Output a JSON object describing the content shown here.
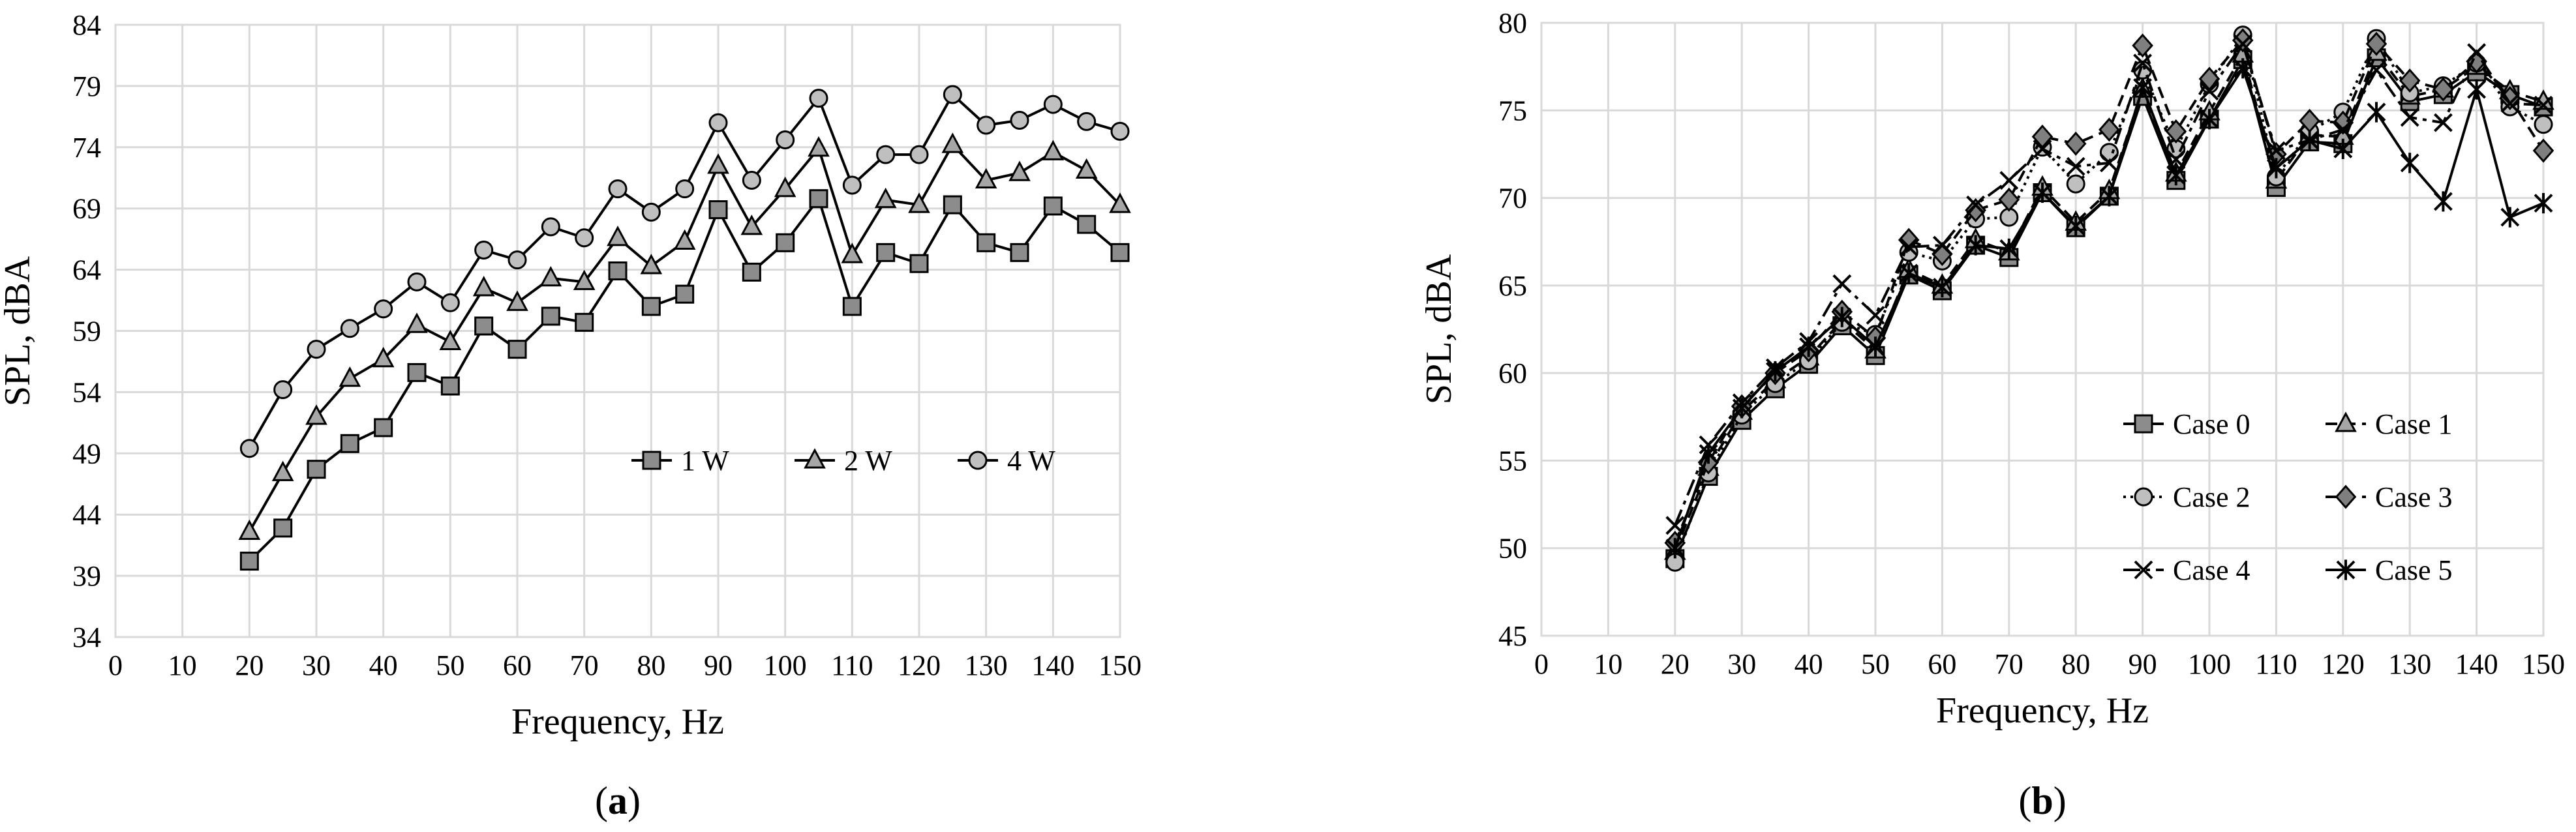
{
  "chart_data": [
    {
      "type": "line",
      "panel_label_prefix": "(",
      "panel_label": "a",
      "panel_label_suffix": ")",
      "xlabel": "Frequency, Hz",
      "ylabel": "SPL, dBA",
      "xlim": [
        0,
        150
      ],
      "ylim": [
        34,
        84
      ],
      "xticks": [
        0,
        10,
        20,
        30,
        40,
        50,
        60,
        70,
        80,
        90,
        100,
        110,
        120,
        130,
        140,
        150
      ],
      "yticks": [
        34,
        39,
        44,
        49,
        54,
        59,
        64,
        69,
        74,
        79,
        84
      ],
      "grid": true,
      "legend_position": "center-right",
      "x": [
        20,
        25,
        30,
        35,
        40,
        45,
        50,
        55,
        60,
        65,
        70,
        75,
        80,
        85,
        90,
        95,
        100,
        105,
        110,
        115,
        120,
        125,
        130,
        135,
        140,
        145,
        150
      ],
      "series": [
        {
          "name": "1 W",
          "marker": "square",
          "line_style": "solid",
          "values": [
            40.2,
            42.9,
            47.7,
            49.8,
            51.1,
            55.6,
            54.5,
            59.4,
            57.5,
            60.2,
            59.7,
            63.9,
            61.0,
            62.0,
            68.9,
            63.8,
            66.2,
            69.8,
            61.0,
            65.4,
            64.5,
            69.3,
            66.2,
            65.4,
            69.2,
            67.7,
            65.4
          ]
        },
        {
          "name": "2 W",
          "marker": "triangle",
          "line_style": "solid",
          "values": [
            42.6,
            47.4,
            52.0,
            55.1,
            56.7,
            59.5,
            58.1,
            62.5,
            61.3,
            63.3,
            63.0,
            66.6,
            64.3,
            66.3,
            72.5,
            67.5,
            70.6,
            73.9,
            65.2,
            69.7,
            69.3,
            74.2,
            71.3,
            71.9,
            73.6,
            72.1,
            69.3
          ]
        },
        {
          "name": "4 W",
          "marker": "circle",
          "line_style": "solid",
          "values": [
            49.4,
            54.2,
            57.5,
            59.2,
            60.8,
            63.0,
            61.3,
            65.6,
            64.8,
            67.5,
            66.6,
            70.6,
            68.7,
            70.6,
            76.0,
            71.3,
            74.6,
            78.0,
            70.9,
            73.4,
            73.4,
            78.3,
            75.8,
            76.2,
            77.5,
            76.1,
            75.3
          ]
        }
      ]
    },
    {
      "type": "line",
      "panel_label_prefix": "(",
      "panel_label": "b",
      "panel_label_suffix": ")",
      "xlabel": "Frequency, Hz",
      "ylabel": "SPL, dBA",
      "xlim": [
        0,
        150
      ],
      "ylim": [
        45,
        80
      ],
      "xticks": [
        0,
        10,
        20,
        30,
        40,
        50,
        60,
        70,
        80,
        90,
        100,
        110,
        120,
        130,
        140,
        150
      ],
      "yticks": [
        45,
        50,
        55,
        60,
        65,
        70,
        75,
        80
      ],
      "grid": true,
      "legend_position": "bottom-right",
      "x": [
        20,
        25,
        30,
        35,
        40,
        45,
        50,
        55,
        60,
        65,
        70,
        75,
        80,
        85,
        90,
        95,
        100,
        105,
        110,
        115,
        120,
        125,
        130,
        135,
        140,
        145,
        150
      ],
      "series": [
        {
          "name": "Case 0",
          "marker": "square",
          "line_style": "solid",
          "values": [
            49.4,
            54.1,
            57.3,
            59.1,
            60.5,
            62.7,
            61.0,
            65.6,
            64.7,
            67.3,
            66.6,
            70.3,
            68.3,
            70.1,
            75.8,
            71.0,
            74.5,
            77.9,
            70.6,
            73.2,
            73.1,
            78.0,
            75.5,
            75.9,
            77.2,
            75.9,
            75.2
          ]
        },
        {
          "name": "Case 1",
          "marker": "triangle",
          "line_style": "dashed",
          "values": [
            49.8,
            54.6,
            57.8,
            59.6,
            60.9,
            63.0,
            61.3,
            65.9,
            65.0,
            67.6,
            66.9,
            70.6,
            68.6,
            70.4,
            76.2,
            71.4,
            74.9,
            78.2,
            71.0,
            73.6,
            73.5,
            78.3,
            75.8,
            76.2,
            77.5,
            76.1,
            75.5
          ]
        },
        {
          "name": "Case 2",
          "marker": "circle",
          "line_style": "dotted",
          "values": [
            49.2,
            54.3,
            57.6,
            59.4,
            60.7,
            62.9,
            62.2,
            66.9,
            66.4,
            68.8,
            68.9,
            72.9,
            70.8,
            72.6,
            77.3,
            72.8,
            76.5,
            79.3,
            71.2,
            73.8,
            74.9,
            79.1,
            76.0,
            76.4,
            77.7,
            75.2,
            74.2
          ]
        },
        {
          "name": "Case 3",
          "marker": "diamond",
          "line_style": "dashed",
          "values": [
            50.3,
            54.9,
            58.1,
            60.0,
            61.3,
            63.5,
            62.0,
            67.6,
            66.8,
            69.3,
            69.9,
            73.5,
            73.1,
            73.9,
            78.7,
            73.8,
            76.8,
            79.0,
            72.5,
            74.4,
            74.3,
            78.8,
            76.7,
            76.2,
            77.8,
            75.7,
            72.7
          ]
        },
        {
          "name": "Case 4",
          "marker": "cross",
          "line_style": "dash-dot",
          "values": [
            51.3,
            55.9,
            58.3,
            60.3,
            61.8,
            65.1,
            63.3,
            67.2,
            67.3,
            69.6,
            71.0,
            72.8,
            71.8,
            72.0,
            77.7,
            72.2,
            76.1,
            78.8,
            72.7,
            73.3,
            73.9,
            77.3,
            74.6,
            74.3,
            78.3,
            75.4,
            75.3
          ]
        },
        {
          "name": "Case 5",
          "marker": "asterisk",
          "line_style": "solid",
          "values": [
            50.0,
            55.4,
            58.0,
            60.1,
            61.5,
            63.2,
            61.5,
            65.7,
            64.9,
            67.3,
            67.1,
            70.3,
            68.4,
            70.1,
            76.3,
            71.3,
            74.5,
            77.4,
            71.7,
            73.3,
            72.8,
            74.9,
            72.0,
            69.8,
            76.2,
            68.9,
            69.7
          ]
        }
      ]
    }
  ]
}
